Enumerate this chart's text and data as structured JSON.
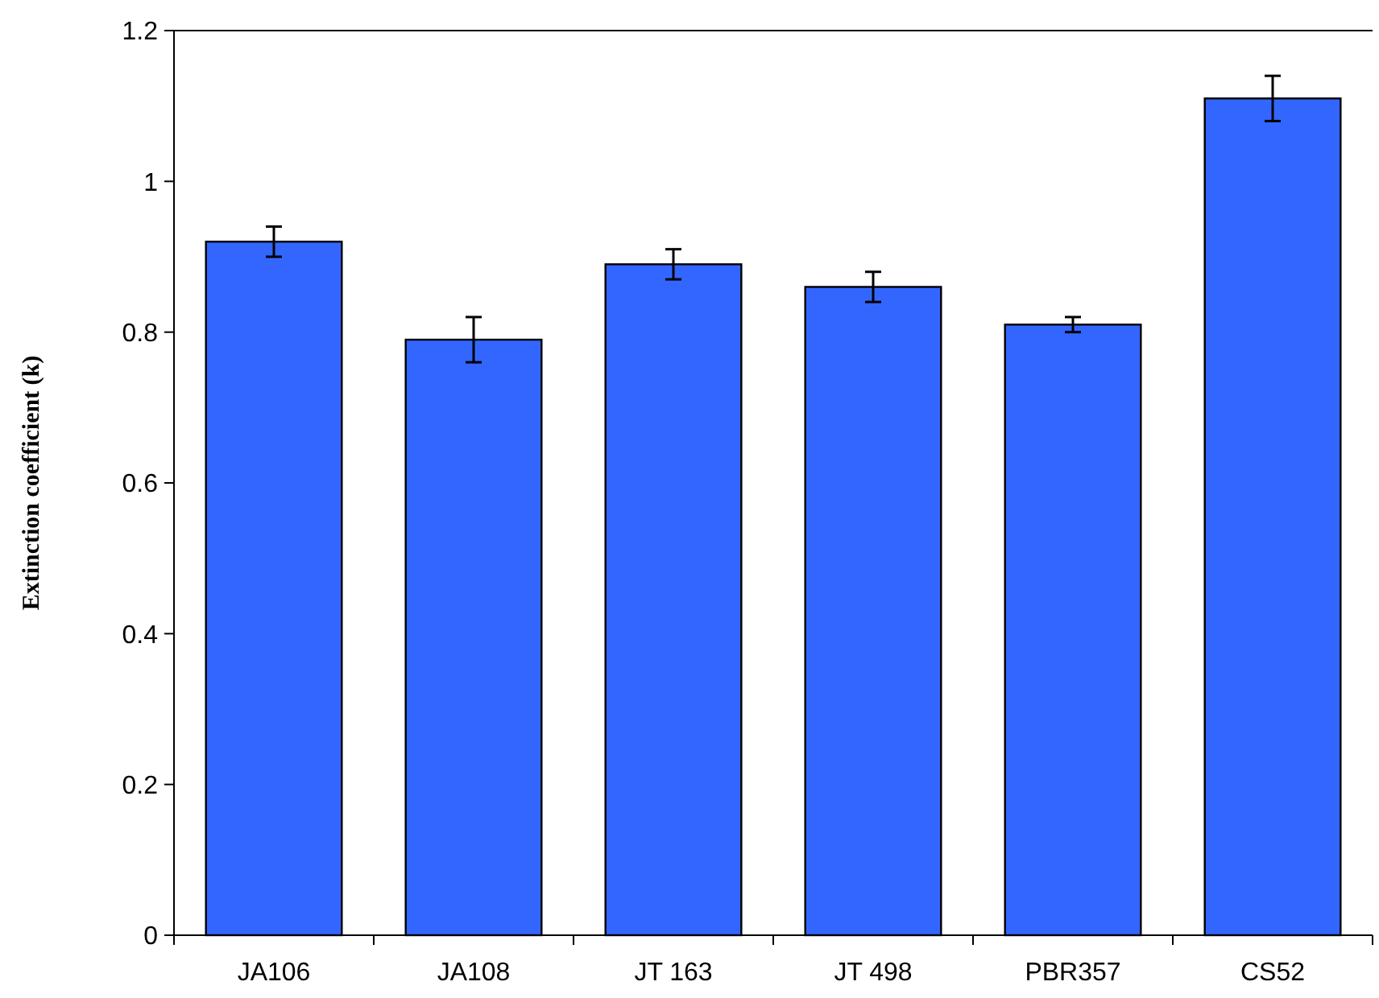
{
  "chart_data": {
    "type": "bar",
    "ylabel": "Extinction coefficient (k)",
    "categories": [
      "JA106",
      "JA108",
      "JT 163",
      "JT 498",
      "PBR357",
      "CS52"
    ],
    "values": [
      0.92,
      0.79,
      0.89,
      0.86,
      0.81,
      1.11
    ],
    "errors": [
      0.02,
      0.03,
      0.02,
      0.02,
      0.01,
      0.03
    ],
    "color": "#3366ff",
    "ylim": [
      0,
      1.2
    ],
    "yticks": [
      0,
      0.2,
      0.4,
      0.6,
      0.8,
      1,
      1.2
    ],
    "grid": false
  }
}
